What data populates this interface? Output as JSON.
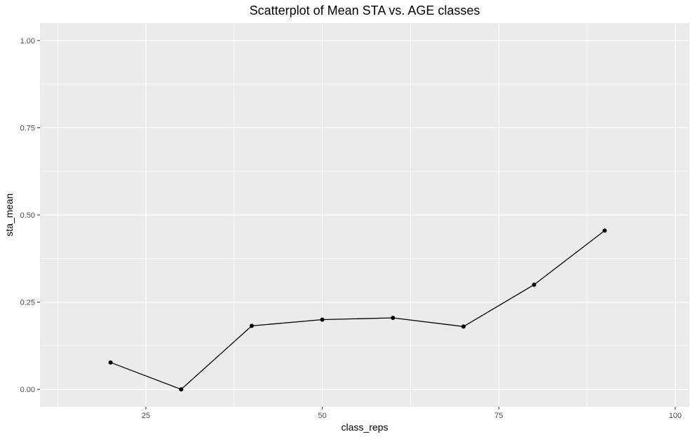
{
  "chart_data": {
    "type": "line",
    "title": "Scatterplot of Mean STA vs. AGE classes",
    "xlabel": "class_reps",
    "ylabel": "sta_mean",
    "xlim": [
      10,
      102
    ],
    "ylim": [
      -0.05,
      1.05
    ],
    "x_ticks": [
      25,
      50,
      75,
      100
    ],
    "x_tick_labels": [
      "25",
      "50",
      "75",
      "100"
    ],
    "y_ticks": [
      0,
      0.25,
      0.5,
      0.75,
      1.0
    ],
    "y_tick_labels": [
      "0.00",
      "0.25",
      "0.50",
      "0.75",
      "1.00"
    ],
    "grid": true,
    "series": [
      {
        "x": [
          20,
          30,
          40,
          50,
          60,
          70,
          80,
          90
        ],
        "y": [
          0.077,
          0.0,
          0.182,
          0.2,
          0.205,
          0.18,
          0.3,
          0.455
        ],
        "markers": true
      }
    ],
    "colors": {
      "panel_background": "#ebebeb",
      "grid_major": "#ffffff",
      "line": "#000000",
      "point": "#000000"
    }
  }
}
